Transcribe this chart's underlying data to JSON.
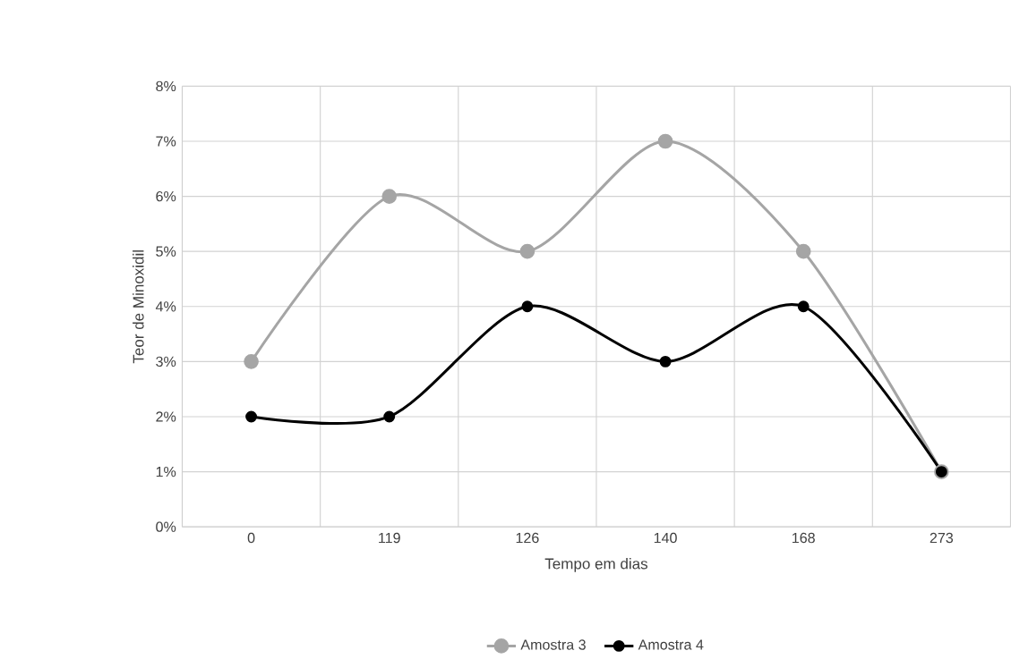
{
  "chart_data": {
    "type": "line",
    "xlabel": "Tempo em dias",
    "ylabel": "Teor de Minoxidil",
    "categories": [
      "0",
      "119",
      "126",
      "140",
      "168",
      "273"
    ],
    "series": [
      {
        "name": "Amostra 3",
        "color": "#a5a5a5",
        "values": [
          3,
          6,
          5,
          7,
          5,
          1
        ]
      },
      {
        "name": "Amostra 4",
        "color": "#000000",
        "values": [
          2,
          2,
          4,
          3,
          4,
          1
        ]
      }
    ],
    "ylim": [
      0,
      8
    ],
    "yticks": [
      {
        "value": 0,
        "label": "0%"
      },
      {
        "value": 1,
        "label": "1%"
      },
      {
        "value": 2,
        "label": "2%"
      },
      {
        "value": 3,
        "label": "3%"
      },
      {
        "value": 4,
        "label": "4%"
      },
      {
        "value": 5,
        "label": "5%"
      },
      {
        "value": 6,
        "label": "6%"
      },
      {
        "value": 7,
        "label": "7%"
      },
      {
        "value": 8,
        "label": "8%"
      }
    ],
    "grid": true,
    "legend": "bottom",
    "marker": "circle",
    "line_style": "solid"
  }
}
